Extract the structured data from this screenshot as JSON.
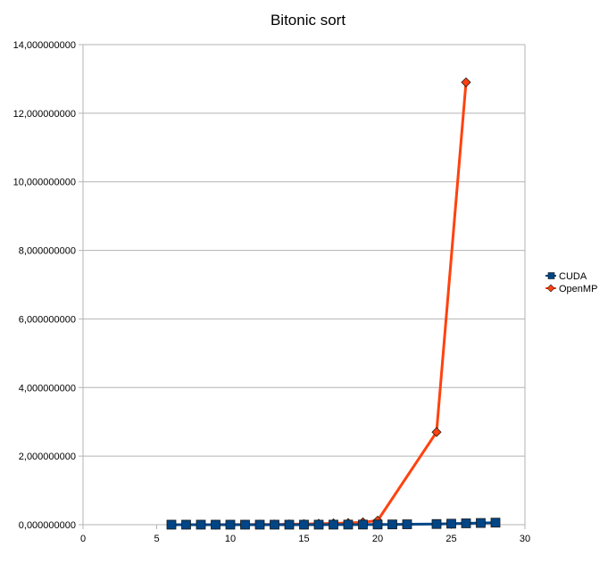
{
  "chart_data": {
    "type": "line",
    "title": "Bitonic sort",
    "xlabel": "",
    "ylabel": "",
    "xlim": [
      0,
      30
    ],
    "ylim": [
      0,
      14
    ],
    "x_ticks": [
      0,
      5,
      10,
      15,
      20,
      25,
      30
    ],
    "x_tick_labels": [
      "0",
      "5",
      "10",
      "15",
      "20",
      "25",
      "30"
    ],
    "y_ticks": [
      0,
      2,
      4,
      6,
      8,
      10,
      12,
      14
    ],
    "y_tick_labels": [
      "0,000000000",
      "2,000000000",
      "4,000000000",
      "6,000000000",
      "8,000000000",
      "10,000000000",
      "12,000000000",
      "14,000000000"
    ],
    "grid": true,
    "legend_position": "right",
    "series": [
      {
        "name": "CUDA",
        "color": "#004586",
        "marker": "square",
        "x": [
          6,
          7,
          8,
          9,
          10,
          11,
          12,
          13,
          14,
          15,
          16,
          17,
          18,
          19,
          20,
          21,
          22,
          24,
          25,
          26,
          27,
          28
        ],
        "y": [
          0.001,
          0.001,
          0.001,
          0.001,
          0.001,
          0.001,
          0.001,
          0.001,
          0.001,
          0.001,
          0.001,
          0.002,
          0.003,
          0.004,
          0.005,
          0.008,
          0.012,
          0.02,
          0.03,
          0.04,
          0.05,
          0.06
        ]
      },
      {
        "name": "OpenMP",
        "color": "#ff420e",
        "marker": "diamond",
        "x": [
          6,
          7,
          8,
          9,
          10,
          11,
          12,
          13,
          14,
          15,
          16,
          17,
          18,
          19,
          20,
          24,
          26
        ],
        "y": [
          0.001,
          0.001,
          0.001,
          0.001,
          0.002,
          0.003,
          0.005,
          0.008,
          0.012,
          0.02,
          0.03,
          0.04,
          0.05,
          0.07,
          0.12,
          2.7,
          12.9
        ]
      }
    ]
  }
}
